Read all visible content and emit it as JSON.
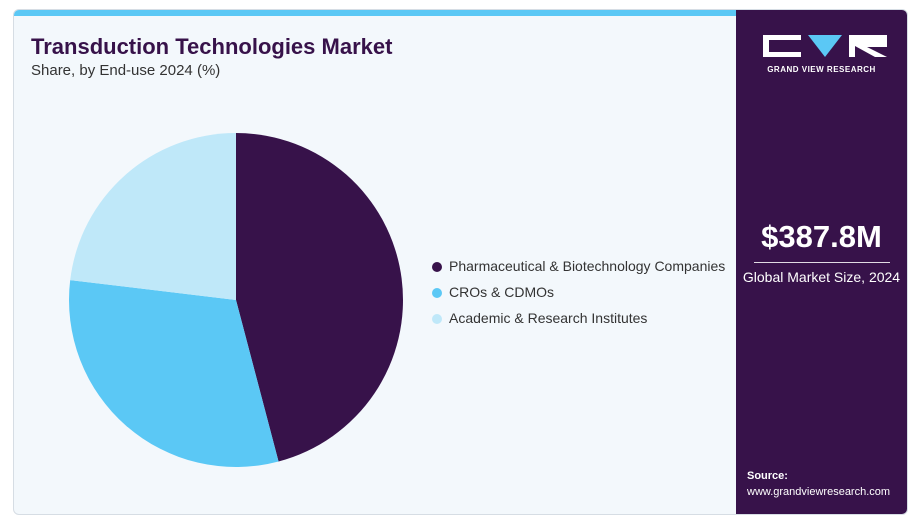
{
  "header": {
    "title": "Transduction Technologies Market",
    "subtitle": "Share, by End-use 2024 (%)"
  },
  "chart_data": {
    "type": "pie",
    "categories": [
      "Pharmaceutical & Biotechnology Companies",
      "CROs & CDMOs",
      "Academic & Research Institutes"
    ],
    "values": [
      45.9,
      31.0,
      23.1
    ],
    "colors": [
      "#37124a",
      "#5bc8f5",
      "#bfe8f9"
    ],
    "start_angle_deg": 0,
    "direction": "clockwise",
    "legend_position": "right"
  },
  "sidebar": {
    "brand": "GRAND VIEW RESEARCH",
    "market_size": "$387.8M",
    "market_size_label": "Global Market Size, 2024",
    "source_label": "Source:",
    "source_url": "www.grandviewresearch.com"
  },
  "colors": {
    "accent": "#5bc8f5",
    "brand_dark": "#37124a",
    "background": "#f3f8fc"
  }
}
